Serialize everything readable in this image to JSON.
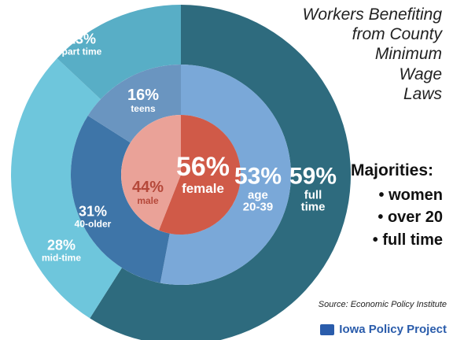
{
  "chart_data": {
    "type": "nested-donut",
    "title": [
      "Workers Benefiting",
      "from County",
      "Minimum",
      "Wage",
      "Laws"
    ],
    "annotations": {
      "heading": "Majorities:",
      "bullets": [
        "• women",
        "• over 20",
        "• full time"
      ]
    },
    "source": "Source: Economic Policy Institute",
    "logo": "Iowa Policy Project",
    "series": [
      {
        "categories": [
          "full time",
          "mid-time",
          "part time"
        ],
        "values": [
          59,
          28,
          13
        ],
        "value_labels": [
          "59%",
          "28%",
          "13%"
        ],
        "colors": [
          "#2e6b7e",
          "#6ec6dc",
          "#58aec6"
        ]
      },
      {
        "categories": [
          "age 20-39",
          "40-older",
          "teens"
        ],
        "values": [
          53,
          31,
          16
        ],
        "value_labels": [
          "53%",
          "31%",
          "16%"
        ],
        "colors": [
          "#7aa8d8",
          "#3e75a8",
          "#6a95c0"
        ]
      },
      {
        "categories": [
          "female",
          "male"
        ],
        "values": [
          56,
          44
        ],
        "value_labels": [
          "56%",
          "44%"
        ],
        "colors": [
          "#d05a48",
          "#eaa298"
        ]
      }
    ]
  }
}
